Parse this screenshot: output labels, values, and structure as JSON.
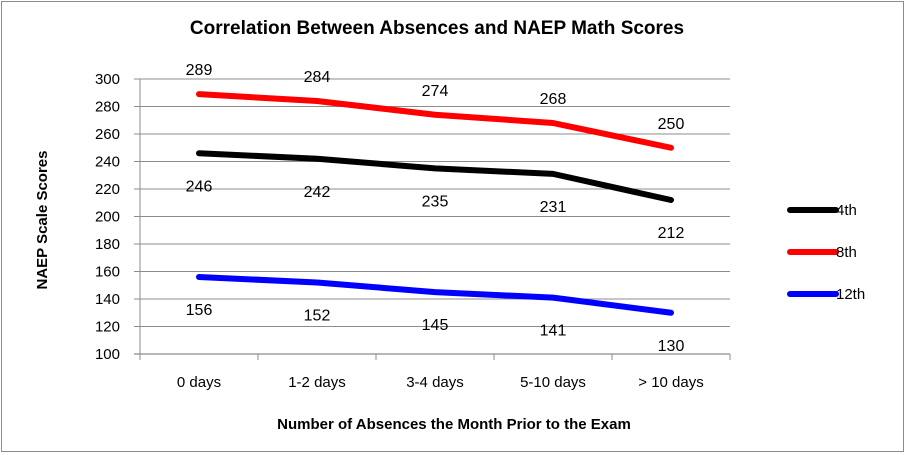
{
  "chart_data": {
    "type": "line",
    "title": "Correlation Between Absences and NAEP Math Scores",
    "xlabel": "Number of Absences the Month Prior to the Exam",
    "ylabel": "NAEP Scale Scores",
    "categories": [
      "0 days",
      "1-2 days",
      "3-4 days",
      "5-10 days",
      "> 10 days"
    ],
    "ylim": [
      100,
      300
    ],
    "y_ticks": [
      100,
      120,
      140,
      160,
      180,
      200,
      220,
      240,
      260,
      280,
      300
    ],
    "grid": "horizontal",
    "legend_position": "right",
    "data_labels": true,
    "series": [
      {
        "name": "4th",
        "color": "#000000",
        "values": [
          246,
          242,
          235,
          231,
          212
        ]
      },
      {
        "name": "8th",
        "color": "#ff0000",
        "values": [
          289,
          284,
          274,
          268,
          250
        ]
      },
      {
        "name": "12th",
        "color": "#0000ff",
        "values": [
          156,
          152,
          145,
          141,
          130
        ]
      }
    ]
  }
}
